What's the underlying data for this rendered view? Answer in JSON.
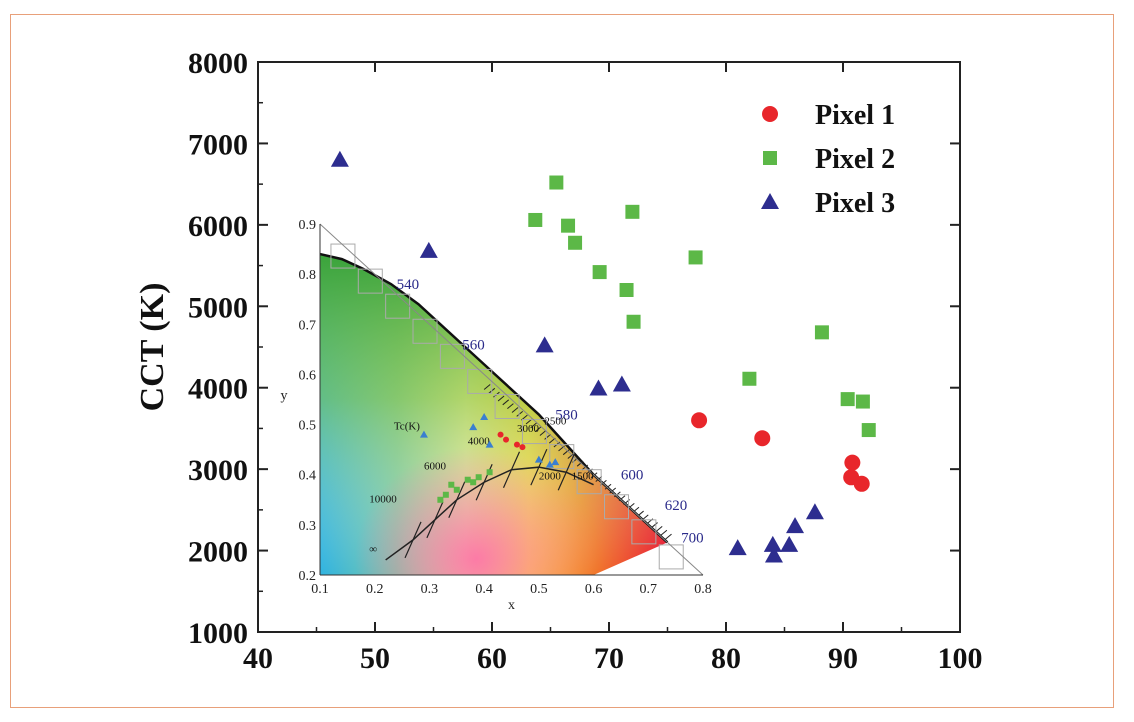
{
  "chart_data": {
    "type": "scatter",
    "title": "",
    "xlabel": "",
    "ylabel": "CCT (K)",
    "xlim": [
      40,
      100
    ],
    "ylim": [
      1000,
      8000
    ],
    "xticks": [
      "40",
      "50",
      "60",
      "70",
      "80",
      "90",
      "100"
    ],
    "yticks": [
      "1000",
      "2000",
      "3000",
      "4000",
      "5000",
      "6000",
      "7000",
      "8000"
    ],
    "grid": false,
    "legend": "top-right",
    "series": [
      {
        "name": "Pixel 1",
        "marker": "circle",
        "color": "#e8262b",
        "points": [
          [
            77.7,
            3600
          ],
          [
            83.1,
            3380
          ],
          [
            90.8,
            3080
          ],
          [
            90.7,
            2900
          ],
          [
            91.6,
            2820
          ]
        ]
      },
      {
        "name": "Pixel 2",
        "marker": "square",
        "color": "#5cb847",
        "points": [
          [
            65.5,
            6520
          ],
          [
            63.7,
            6060
          ],
          [
            72.0,
            6160
          ],
          [
            66.5,
            5990
          ],
          [
            67.1,
            5780
          ],
          [
            77.4,
            5600
          ],
          [
            69.2,
            5420
          ],
          [
            71.5,
            5200
          ],
          [
            72.1,
            4810
          ],
          [
            88.2,
            4680
          ],
          [
            82.0,
            4110
          ],
          [
            90.4,
            3860
          ],
          [
            91.7,
            3830
          ],
          [
            92.2,
            3480
          ]
        ]
      },
      {
        "name": "Pixel 3",
        "marker": "triangle",
        "color": "#2d2d8f",
        "points": [
          [
            47.0,
            6800
          ],
          [
            54.6,
            5680
          ],
          [
            64.5,
            4520
          ],
          [
            69.1,
            3990
          ],
          [
            71.1,
            4040
          ],
          [
            87.6,
            2470
          ],
          [
            85.9,
            2300
          ],
          [
            84.0,
            2070
          ],
          [
            85.4,
            2070
          ],
          [
            81.0,
            2030
          ],
          [
            84.1,
            1940
          ]
        ]
      }
    ]
  },
  "inset": {
    "xlabel": "x",
    "ylabel": "y",
    "xticks": [
      "0.1",
      "0.2",
      "0.3",
      "0.4",
      "0.5",
      "0.6",
      "0.7",
      "0.8"
    ],
    "yticks": [
      "0.2",
      "0.3",
      "0.4",
      "0.5",
      "0.6",
      "0.7",
      "0.8",
      "0.9"
    ],
    "wavelength_labels": [
      "540",
      "560",
      "580",
      "600",
      "620",
      "700"
    ],
    "cct_label": "Tc(K)",
    "cct_values": [
      "10000",
      "6000",
      "4000",
      "3000",
      "2500",
      "2000",
      "1500"
    ],
    "infinity": "∞"
  },
  "colors": {
    "frame": "#e8a07a",
    "pixel1": "#e8262b",
    "pixel2": "#5cb847",
    "pixel3": "#2d2d8f"
  }
}
